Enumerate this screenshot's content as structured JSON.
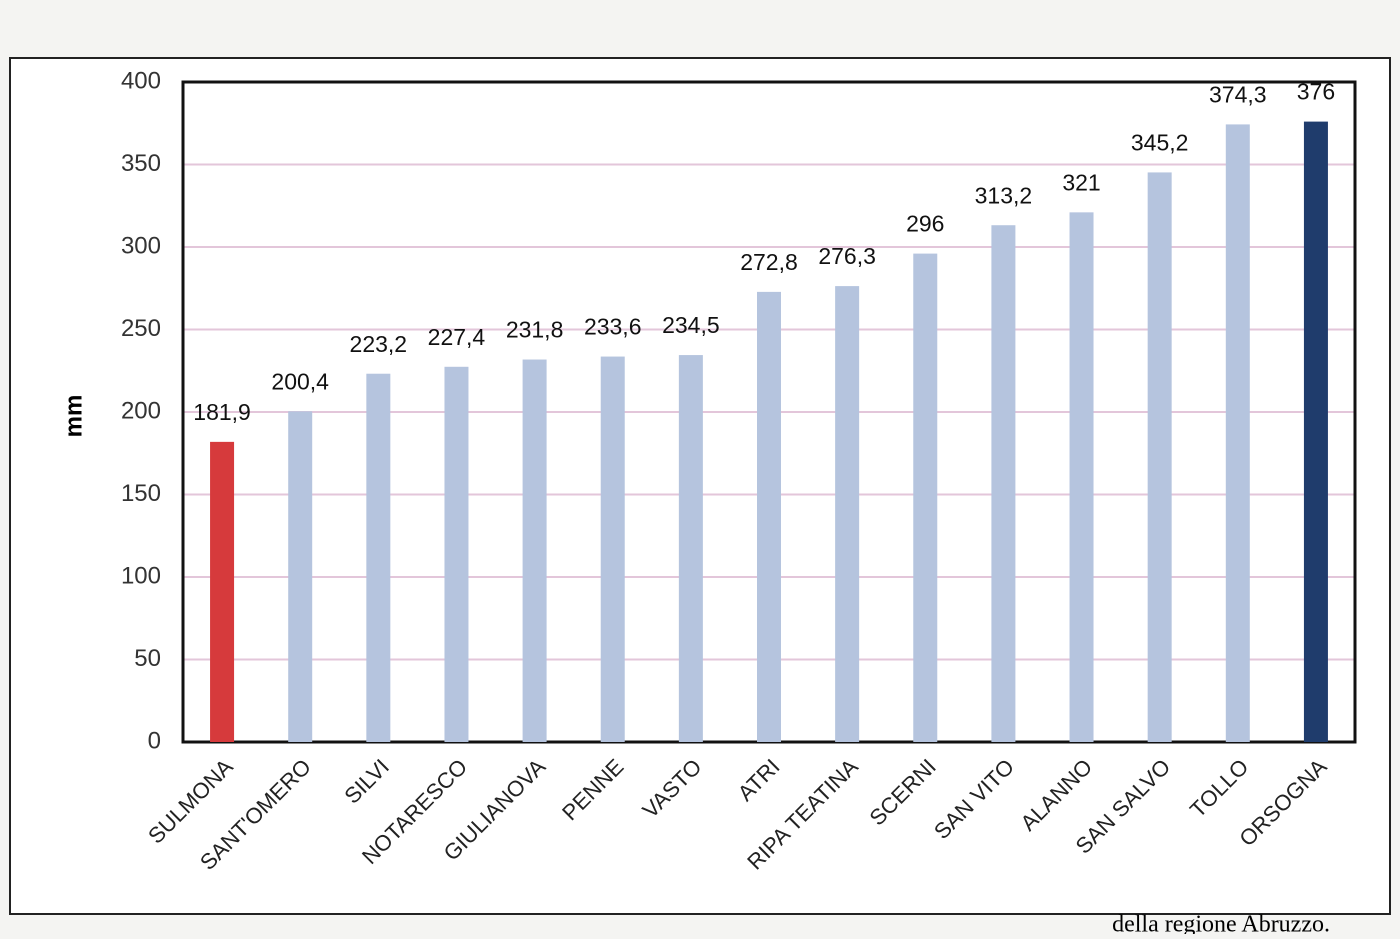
{
  "chart_data": {
    "type": "bar",
    "y_label": "mm",
    "categories": [
      "SULMONA",
      "SANT'OMERO",
      "SILVI",
      "NOTARESCO",
      "GIULIANOVA",
      "PENNE",
      "VASTO",
      "ATRI",
      "RIPA TEATINA",
      "SCERNI",
      "SAN VITO",
      "ALANNO",
      "SAN SALVO",
      "TOLLO",
      "ORSOGNA"
    ],
    "values": [
      181.9,
      200.4,
      223.2,
      227.4,
      231.8,
      233.6,
      234.5,
      272.8,
      276.3,
      296,
      313.2,
      321,
      345.2,
      374.3,
      376
    ],
    "value_labels": [
      "181,9",
      "200,4",
      "223,2",
      "227,4",
      "231,8",
      "233,6",
      "234,5",
      "272,8",
      "276,3",
      "296",
      "313,2",
      "321",
      "345,2",
      "374,3",
      "376"
    ],
    "colors": [
      "#d63a3c",
      "#b5c4de",
      "#b5c4de",
      "#b5c4de",
      "#b5c4de",
      "#b5c4de",
      "#b5c4de",
      "#b5c4de",
      "#b5c4de",
      "#b5c4de",
      "#b5c4de",
      "#b5c4de",
      "#b5c4de",
      "#b5c4de",
      "#1f3c6c"
    ],
    "ylim": [
      0,
      400
    ],
    "yticks": [
      0,
      50,
      100,
      150,
      200,
      250,
      300,
      350,
      400
    ],
    "grid": true,
    "caption": "della regione Abruzzo."
  }
}
